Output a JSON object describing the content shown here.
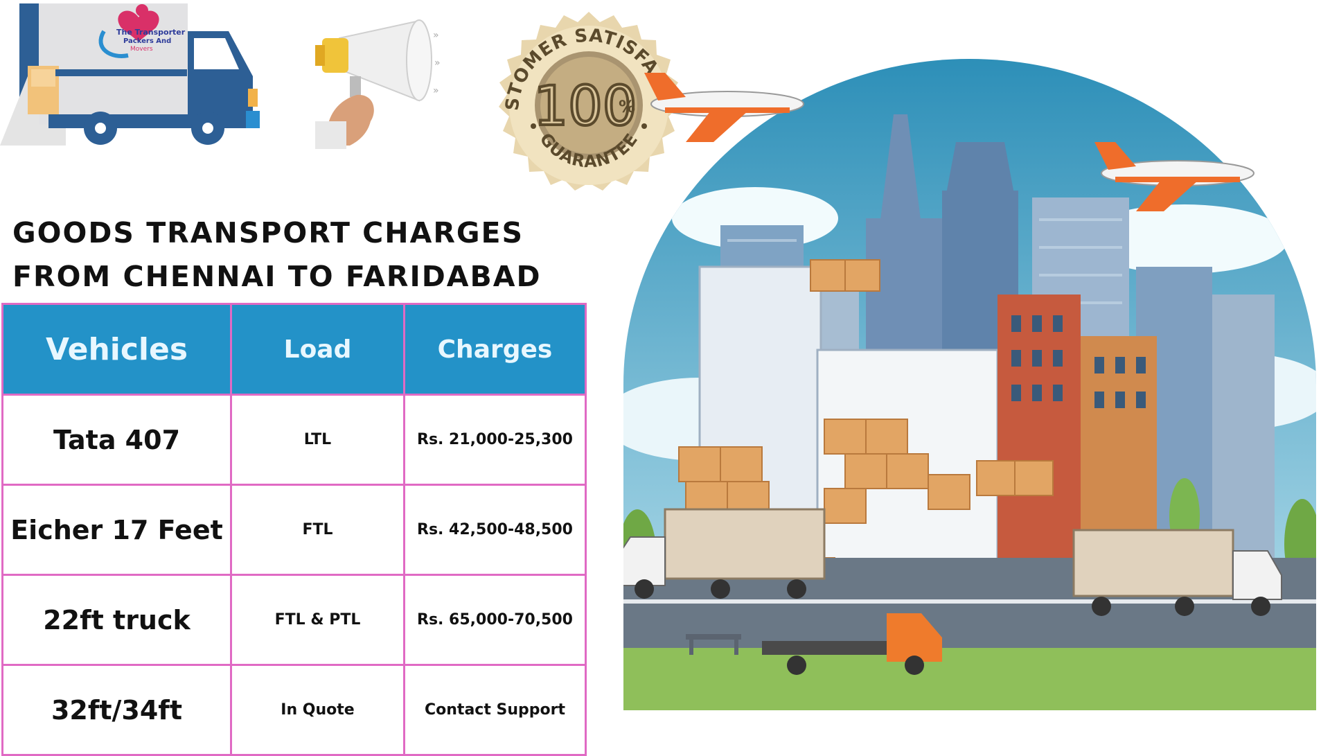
{
  "logo": {
    "brand_line1": "The Transporter",
    "brand_line2": "Packers And",
    "brand_line3": "Movers"
  },
  "seal": {
    "top_text": "CUSTOMER SATISFACTION",
    "big_number": "100",
    "percent": "%",
    "bottom_text": "GUARANTEE"
  },
  "title": {
    "line1": "Goods Transport Charges",
    "line2": "From Chennai to Faridabad"
  },
  "table": {
    "headers": [
      "Vehicles",
      "Load",
      "Charges"
    ],
    "rows": [
      {
        "vehicle": "Tata 407",
        "load": "LTL",
        "charges": "Rs. 21,000-25,300"
      },
      {
        "vehicle": "Eicher 17 Feet",
        "load": "FTL",
        "charges": "Rs. 42,500-48,500"
      },
      {
        "vehicle": "22ft truck",
        "load": "FTL & PTL",
        "charges": "Rs. 65,000-70,500"
      },
      {
        "vehicle": "32ft/34ft",
        "load": "In Quote",
        "charges": "Contact Support"
      }
    ]
  },
  "colors": {
    "header_bg": "#2392c8",
    "border": "#e06ac4",
    "seal_gold": "#d9c49a",
    "truck_blue": "#2d5f95"
  },
  "icons": [
    "truck-logo-icon",
    "megaphone-icon",
    "satisfaction-seal-icon",
    "city-logistics-illustration"
  ]
}
